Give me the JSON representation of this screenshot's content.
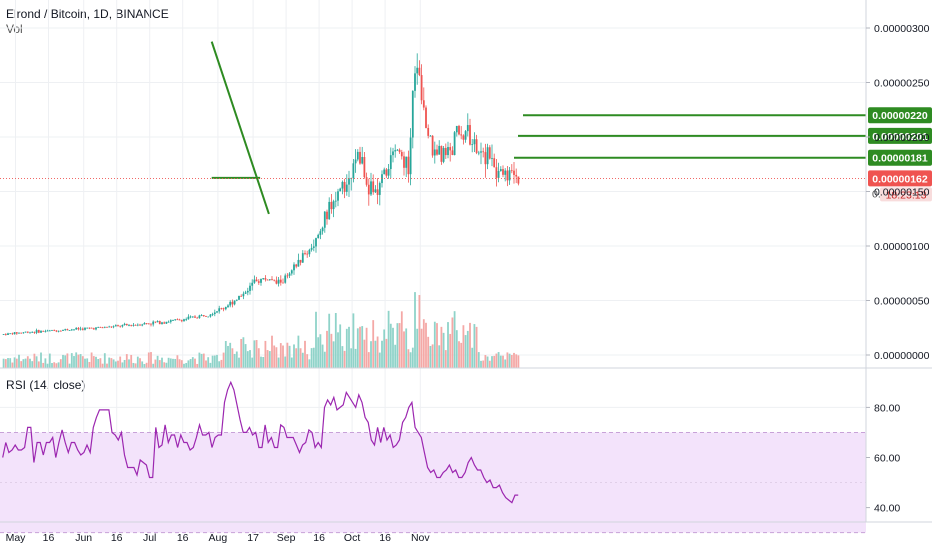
{
  "header": {
    "symbol_line": "Elrond / Bitcoin, 1D, BINANCE",
    "volume_label": "Vol"
  },
  "rsi_pane": {
    "label": "RSI (14, close)"
  },
  "colors": {
    "up": "#26a69a",
    "down": "#ef5350",
    "vol_up": "#8fd3c9",
    "vol_down": "#f4a8a6",
    "rsi": "#9c27b0",
    "rsi_band": "#f3e3fb",
    "pattern": "#2e8b22",
    "price_line": "#ef5350"
  },
  "chart_data": [
    {
      "type": "candlestick",
      "title": "Elrond / Bitcoin, 1D, BINANCE",
      "y_axis_ticks": [
        "0.00000300",
        "0.00000250",
        "0.00000200",
        "0.00000150",
        "0.00000100",
        "0.00000050",
        "0.00000000"
      ],
      "ylim": [
        0,
        3.25e-06
      ],
      "x_axis_ticks": [
        "May",
        "16",
        "Jun",
        "16",
        "Jul",
        "16",
        "Aug",
        "17",
        "Sep",
        "16",
        "Oct",
        "16",
        "Nov"
      ],
      "last_price_label": "0.00000162",
      "countdown_label": "18:23:13",
      "truncated_tick": "0.",
      "horizontal_levels": [
        {
          "price_label": "0.00000220",
          "value": 2.2e-06
        },
        {
          "price_label": "0.00000201",
          "value": 2.01e-06
        },
        {
          "price_label": "0.00000181",
          "value": 1.81e-06
        }
      ],
      "pattern_lines": [
        {
          "kind": "descending-resistance",
          "from": [
            "2020-07-31",
            2.875e-06
          ],
          "to": [
            "2020-08-26",
            1.294e-06
          ]
        },
        {
          "kind": "horizontal-support",
          "from": [
            "2020-07-31",
            1.625e-06
          ],
          "to": [
            "2020-08-22",
            1.625e-06
          ]
        }
      ],
      "volume_visible": true,
      "grid": true
    },
    {
      "type": "line",
      "title": "RSI (14, close)",
      "y_axis_ticks": [
        "80.00",
        "60.00",
        "40.00"
      ],
      "ylim": [
        26,
        96
      ],
      "band": [
        30,
        70
      ],
      "midline": 50,
      "points_start": "2020-04-27",
      "values": [
        60,
        66,
        62,
        63,
        65,
        63,
        63,
        64,
        72,
        72,
        58,
        66,
        66,
        61,
        66,
        66,
        68,
        60,
        66,
        71,
        66,
        62,
        66,
        66,
        63,
        61,
        62,
        65,
        62,
        72,
        76,
        79,
        79,
        79,
        79,
        70,
        69,
        67,
        70,
        61,
        56,
        56,
        56,
        53,
        59,
        58,
        57,
        52,
        52,
        72,
        64,
        65,
        73,
        66,
        69,
        69,
        64,
        69,
        66,
        66,
        63,
        64,
        68,
        73,
        69,
        69,
        70,
        64,
        68,
        69,
        69,
        82,
        87,
        90,
        87,
        81,
        75,
        70,
        70,
        72,
        69,
        70,
        64,
        64,
        73,
        66,
        68,
        64,
        64,
        73,
        72,
        68,
        68,
        68,
        65,
        62,
        65,
        66,
        71,
        70,
        64,
        66,
        64,
        80,
        83,
        81,
        84,
        79,
        80,
        81,
        86,
        84,
        82,
        80,
        85,
        82,
        76,
        74,
        67,
        65,
        72,
        66,
        72,
        67,
        69,
        64,
        65,
        67,
        74,
        76,
        80,
        82,
        72,
        70,
        68,
        62,
        56,
        54,
        55,
        52,
        52,
        54,
        55,
        57,
        54,
        55,
        52,
        52,
        54,
        58,
        60,
        57,
        55,
        55,
        52,
        50,
        51,
        48,
        48,
        49,
        46,
        44,
        43,
        42,
        45,
        45
      ]
    }
  ]
}
